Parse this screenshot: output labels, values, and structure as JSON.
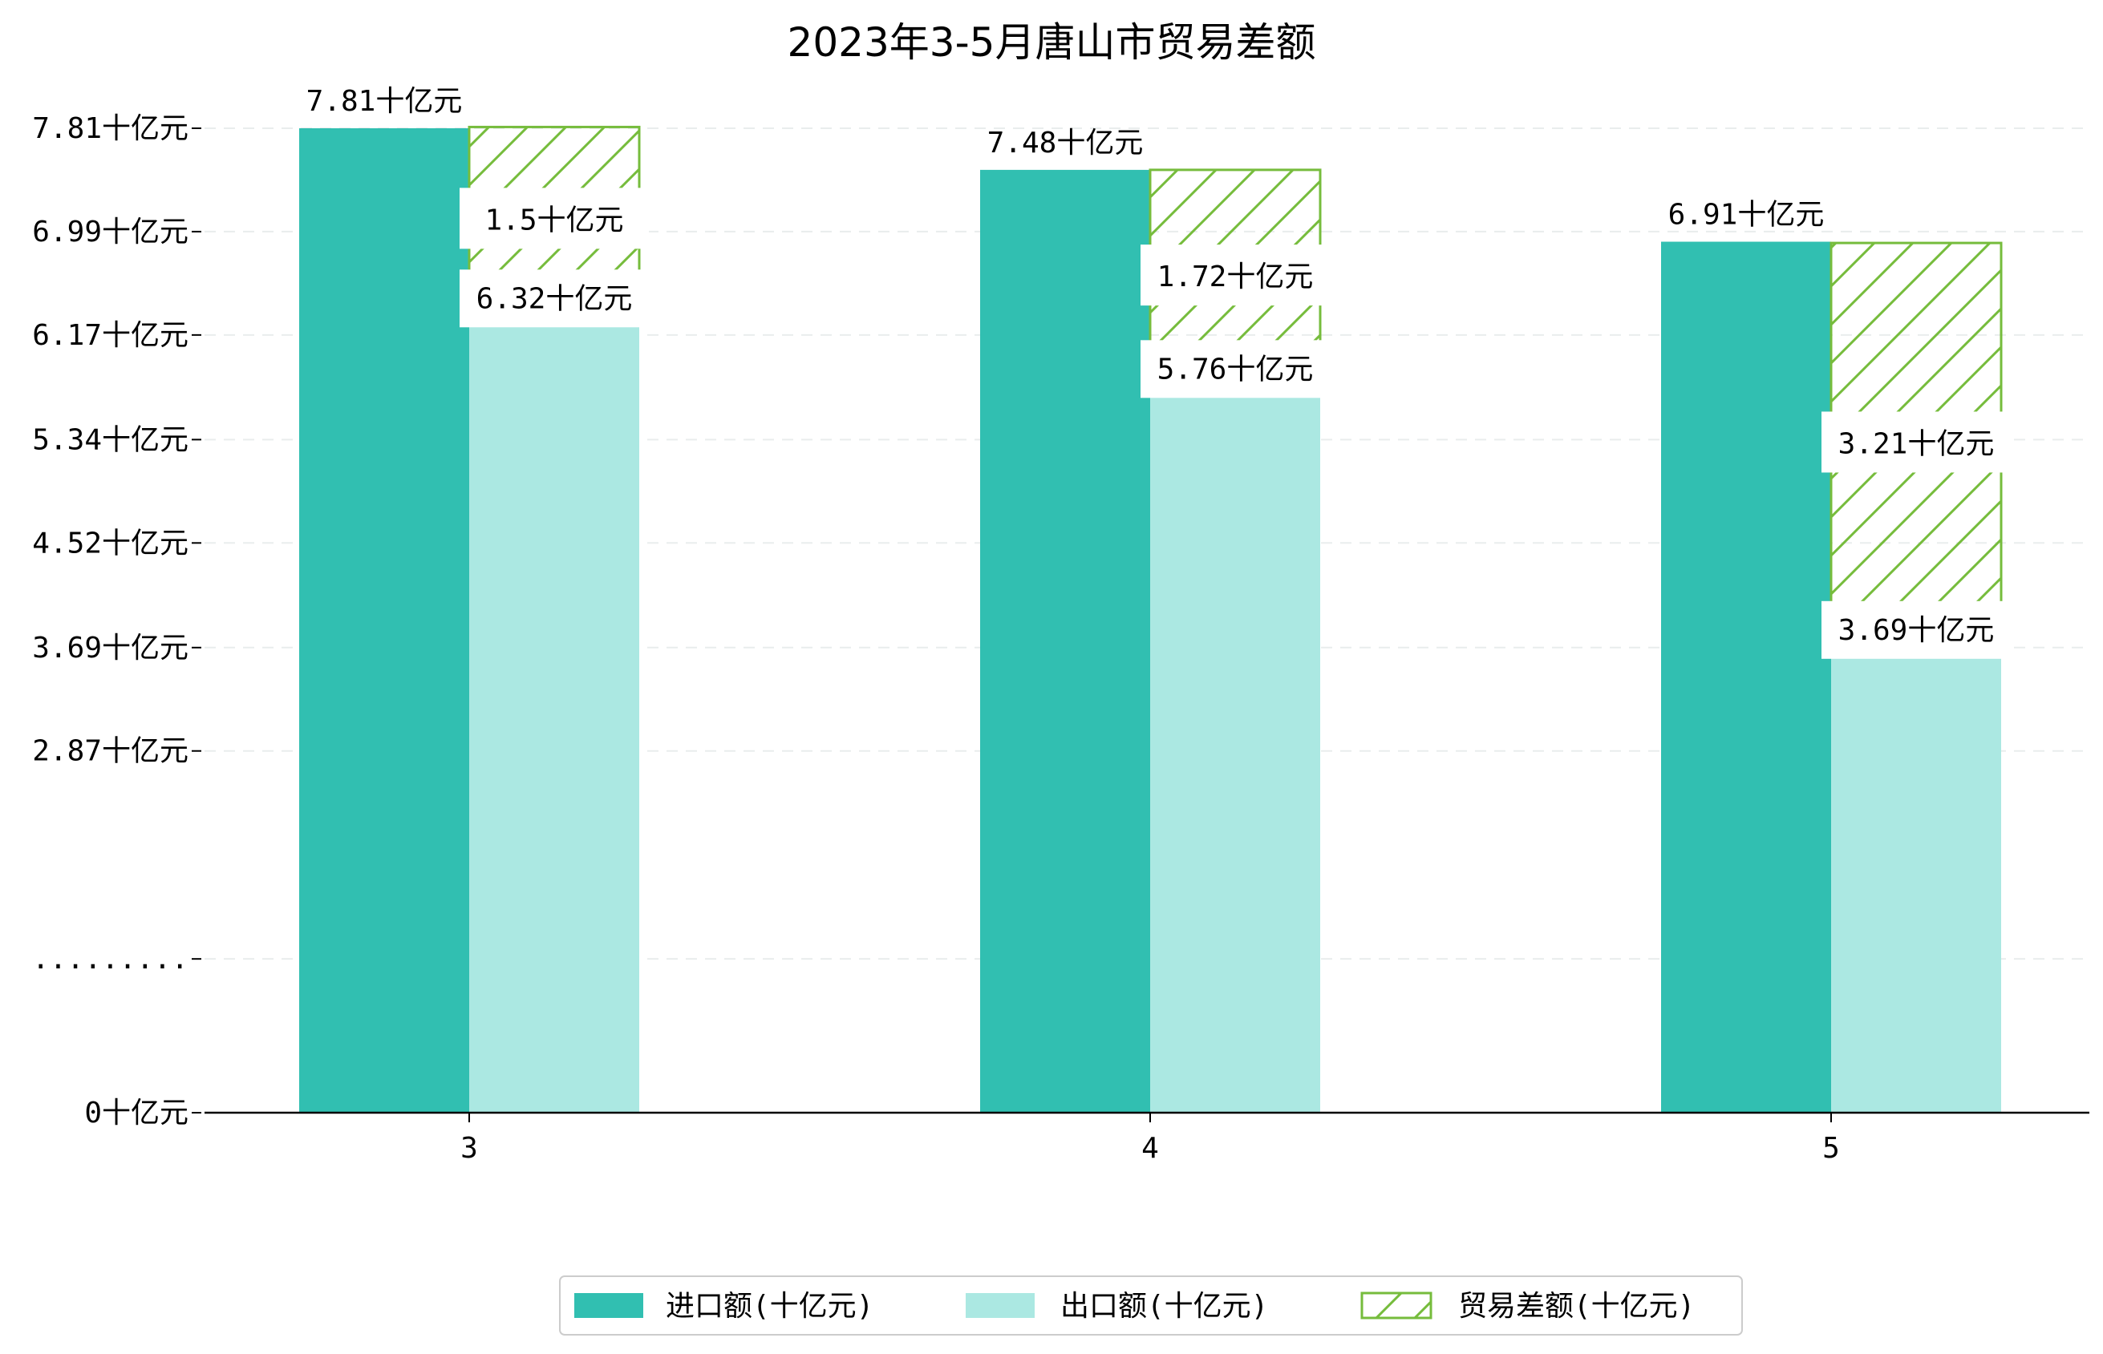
{
  "chart_data": {
    "type": "bar",
    "title": "2023年3-5月唐山市贸易差额",
    "xlabel": "",
    "ylabel": "",
    "categories": [
      "3",
      "4",
      "5"
    ],
    "series": [
      {
        "name": "进口额(十亿元)",
        "values": [
          7.81,
          7.48,
          6.91
        ],
        "color": "#31bfb1",
        "value_labels": [
          "7.81十亿元",
          "7.48十亿元",
          "6.91十亿元"
        ]
      },
      {
        "name": "出口额(十亿元)",
        "values": [
          6.32,
          5.76,
          3.69
        ],
        "color": "#abe8e2",
        "value_labels": [
          "6.32十亿元",
          "5.76十亿元",
          "3.69十亿元"
        ]
      },
      {
        "name": "贸易差额(十亿元)",
        "values": [
          1.5,
          1.72,
          3.21
        ],
        "color": "#76bc3c",
        "pattern": "hatch",
        "stacked_on": "出口额(十亿元)",
        "value_labels": [
          "1.5十亿元",
          "1.72十亿元",
          "3.21十亿元"
        ]
      }
    ],
    "yticks": [
      {
        "value": 0,
        "label": "0十亿元"
      },
      {
        "value": 1.22,
        "label": "........."
      },
      {
        "value": 2.87,
        "label": "2.87十亿元"
      },
      {
        "value": 3.69,
        "label": "3.69十亿元"
      },
      {
        "value": 4.52,
        "label": "4.52十亿元"
      },
      {
        "value": 5.34,
        "label": "5.34十亿元"
      },
      {
        "value": 6.17,
        "label": "6.17十亿元"
      },
      {
        "value": 6.99,
        "label": "6.99十亿元"
      },
      {
        "value": 7.81,
        "label": "7.81十亿元"
      }
    ],
    "ylim": [
      0,
      7.81
    ],
    "grid": "horizontal dashed",
    "legend_position": "bottom"
  }
}
